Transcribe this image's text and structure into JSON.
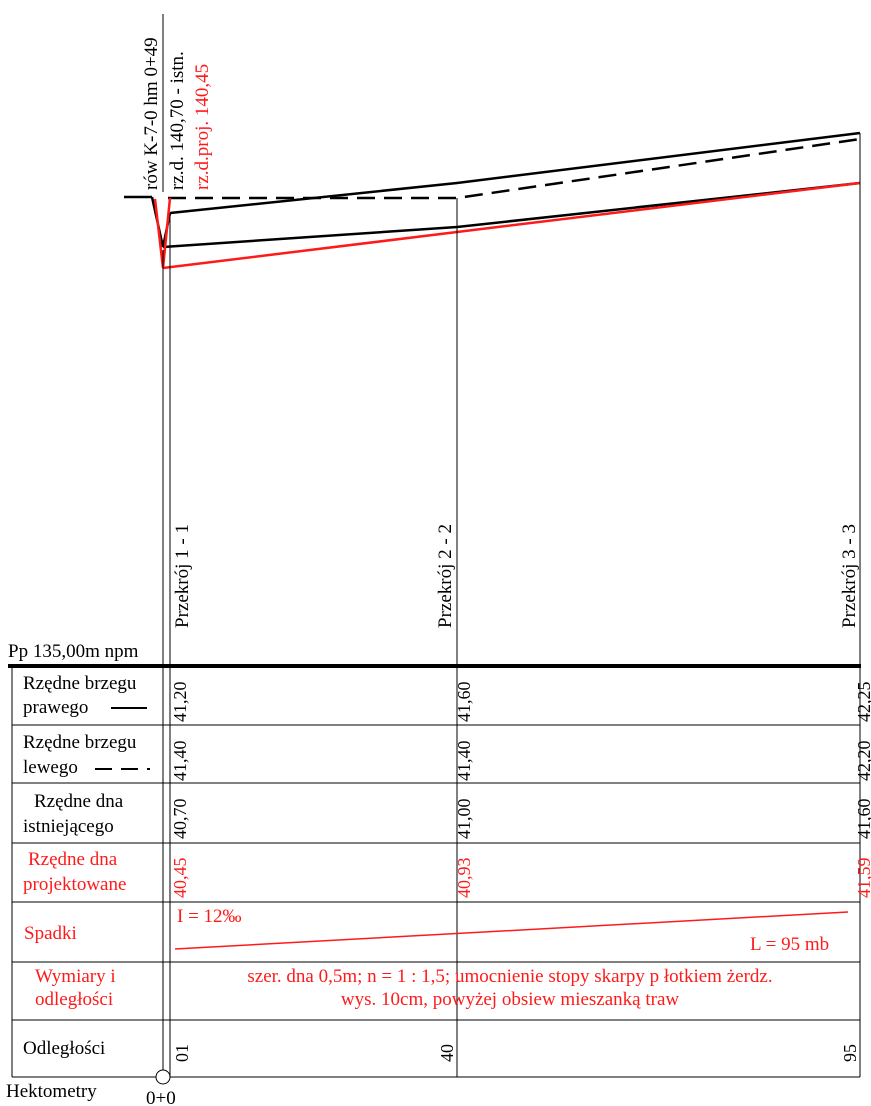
{
  "header": {
    "line1": "rów K-7-0 hm 0+49",
    "line2": "rz.d. 140,70 - istn.",
    "line3": "rz.d.proj. 140,45"
  },
  "sections": [
    "Przekrój  1 - 1",
    "Przekrój  2 - 2",
    "Przekrój  3 - 3"
  ],
  "datum": "Pp  135,00m npm",
  "rows": {
    "right_bank": {
      "label1": "Rzędne brzegu",
      "label2": "prawego",
      "values": [
        "41,20",
        "41,60",
        "42,25"
      ]
    },
    "left_bank": {
      "label1": "Rzędne brzegu",
      "label2": "lewego",
      "values": [
        "41,40",
        "41,40",
        "42,20"
      ]
    },
    "existing_bottom": {
      "label1": "Rzędne dna",
      "label2": "istniejącego",
      "values": [
        "40,70",
        "41,00",
        "41,60"
      ]
    },
    "design_bottom": {
      "label1": "Rzędne dna",
      "label2": "projektowane",
      "values": [
        "40,45",
        "40,93",
        "41,59"
      ]
    },
    "slopes": {
      "label": "Spadki",
      "slope": "I = 12‰",
      "length": "L = 95 mb"
    },
    "dimensions": {
      "label1": "Wymiary i",
      "label2": "odległości",
      "text1": "szer. dna 0,5m;   n = 1 : 1,5;  umocnienie stopy skarpy p łotkiem żerdz.",
      "text2": "wys. 10cm,  powyżej obsiew mieszanką traw"
    },
    "distances": {
      "label": "Odległości",
      "values": [
        "01",
        "40",
        "95"
      ]
    },
    "hectometers": {
      "label": "Hektometry",
      "value": "0+0"
    }
  },
  "colors": {
    "design": "#ff1a1a",
    "line": "#000000"
  },
  "profile_data": {
    "stations_m": [
      1,
      40,
      95
    ],
    "right_bank": [
      41.2,
      41.6,
      42.25
    ],
    "left_bank": [
      41.4,
      41.4,
      42.2
    ],
    "existing_bottom": [
      40.7,
      41.0,
      41.6
    ],
    "design_bottom": [
      40.45,
      40.93,
      41.59
    ]
  }
}
